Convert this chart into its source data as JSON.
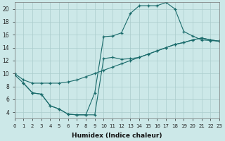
{
  "bg_color": "#cce8e8",
  "grid_color": "#aacccc",
  "line_color": "#1a6b6b",
  "xlabel": "Humidex (Indice chaleur)",
  "xlim": [
    0,
    23
  ],
  "ylim": [
    3,
    21
  ],
  "yticks": [
    4,
    6,
    8,
    10,
    12,
    14,
    16,
    18,
    20
  ],
  "curve1_x": [
    0,
    1,
    2,
    3,
    4,
    5,
    6,
    7,
    8,
    9,
    10,
    11,
    12,
    13,
    14,
    15,
    16,
    17,
    18,
    19,
    20,
    21,
    22,
    23
  ],
  "curve1_y": [
    9.8,
    8.5,
    7.0,
    6.8,
    5.0,
    4.5,
    3.7,
    3.6,
    3.6,
    7.0,
    15.7,
    15.8,
    16.3,
    19.3,
    20.5,
    20.5,
    20.5,
    21.0,
    20.0,
    16.5,
    15.8,
    15.2,
    15.1,
    15.0
  ],
  "curve2_x": [
    0,
    1,
    2,
    3,
    4,
    5,
    6,
    7,
    8,
    9,
    10,
    11,
    12,
    13,
    14,
    15,
    16,
    17,
    18,
    19,
    20,
    21,
    22,
    23
  ],
  "curve2_y": [
    10.0,
    9.0,
    8.5,
    8.5,
    8.5,
    8.5,
    8.7,
    9.0,
    9.5,
    10.0,
    10.5,
    11.0,
    11.5,
    12.0,
    12.5,
    13.0,
    13.5,
    14.0,
    14.5,
    14.8,
    15.2,
    15.5,
    15.2,
    15.0
  ],
  "curve3_x": [
    1,
    2,
    3,
    4,
    5,
    6,
    7,
    8,
    9,
    10,
    11,
    12,
    13,
    14,
    15,
    16,
    17,
    18,
    19,
    20,
    21,
    22,
    23
  ],
  "curve3_y": [
    8.5,
    7.0,
    6.8,
    5.0,
    4.5,
    3.7,
    3.6,
    3.6,
    3.6,
    12.3,
    12.5,
    12.2,
    12.3,
    12.5,
    13.0,
    13.5,
    14.0,
    14.5,
    14.8,
    15.2,
    15.5,
    15.2,
    15.0
  ]
}
